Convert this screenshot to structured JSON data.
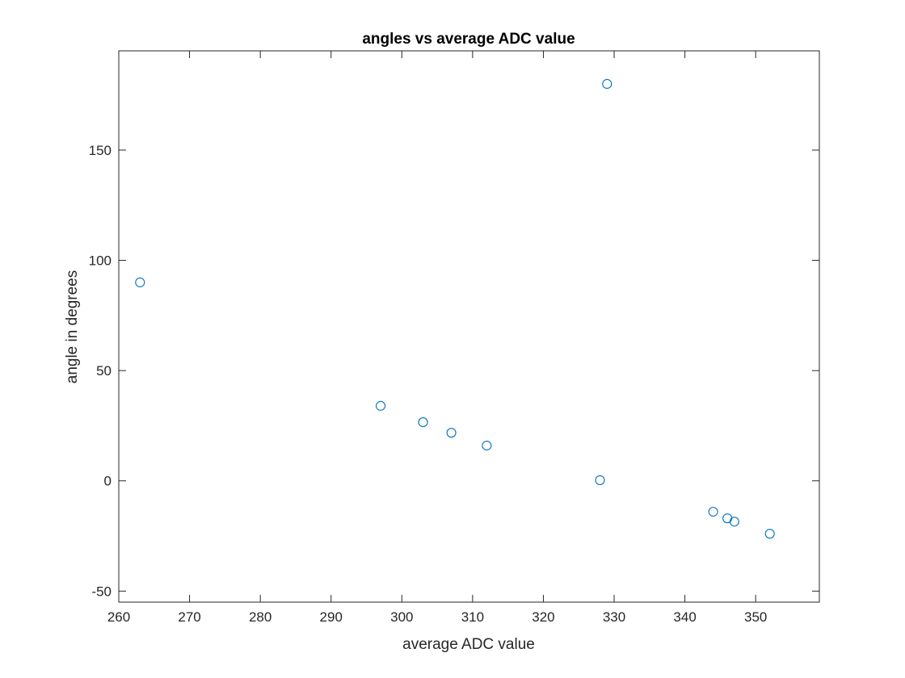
{
  "chart_data": {
    "type": "scatter",
    "title": "angles vs average ADC value",
    "xlabel": "average ADC value",
    "ylabel": "angle in degrees",
    "xlim": [
      260,
      359
    ],
    "ylim": [
      -55,
      195
    ],
    "xticks": [
      260,
      270,
      280,
      290,
      300,
      310,
      320,
      330,
      340,
      350
    ],
    "yticks": [
      -50,
      0,
      50,
      100,
      150
    ],
    "grid": false,
    "marker": "circle",
    "color": "#0072BD",
    "points": [
      {
        "x": 263,
        "y": 90
      },
      {
        "x": 297,
        "y": 34
      },
      {
        "x": 303,
        "y": 26.6
      },
      {
        "x": 307,
        "y": 21.8
      },
      {
        "x": 312,
        "y": 16
      },
      {
        "x": 328,
        "y": 0.3
      },
      {
        "x": 329,
        "y": 180
      },
      {
        "x": 344,
        "y": -14
      },
      {
        "x": 346,
        "y": -17
      },
      {
        "x": 347,
        "y": -18.5
      },
      {
        "x": 352,
        "y": -24
      }
    ]
  }
}
